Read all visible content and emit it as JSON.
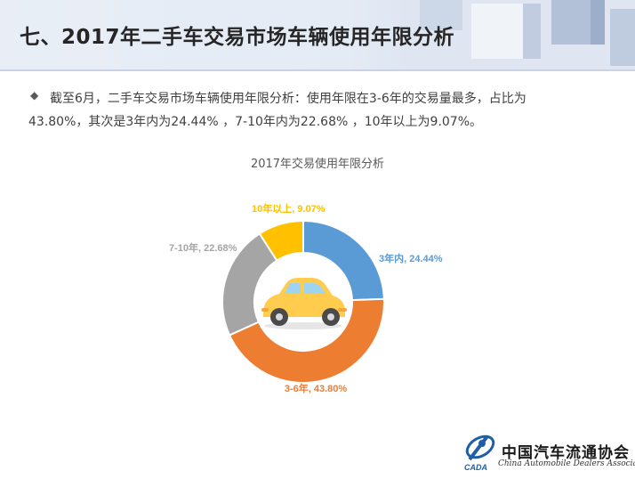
{
  "slide": {
    "title": "七、2017年二手车交易市场车辆使用年限分析",
    "bullet_line1": "截至6月，二手车交易市场车辆使用年限分析：使用年限在3-6年的交易量最多，占比为",
    "bullet_line2": "43.80%，其次是3年内为24.44% ，7-10年内为22.68% ，10年以上为9.07%。",
    "bullet_icon": "diamond-bullet-icon"
  },
  "chart_data": {
    "type": "pie",
    "title": "2017年交易使用年限分析",
    "donut": true,
    "categories": [
      "3年内",
      "3-6年",
      "7-10年",
      "10年以上"
    ],
    "values": [
      24.44,
      43.8,
      22.68,
      9.07
    ],
    "labels": [
      "3年内, 24.44%",
      "3-6年, 43.80%",
      "7-10年, 22.68%",
      "10年以上, 9.07%"
    ],
    "colors": [
      "#5b9bd5",
      "#ed7d31",
      "#a5a5a5",
      "#ffc000"
    ],
    "center_icon": "car-icon"
  },
  "logo": {
    "name_cn": "中国汽车流通协会",
    "name_en": "China Automobile Dealers Association",
    "abbr": "CADA"
  }
}
